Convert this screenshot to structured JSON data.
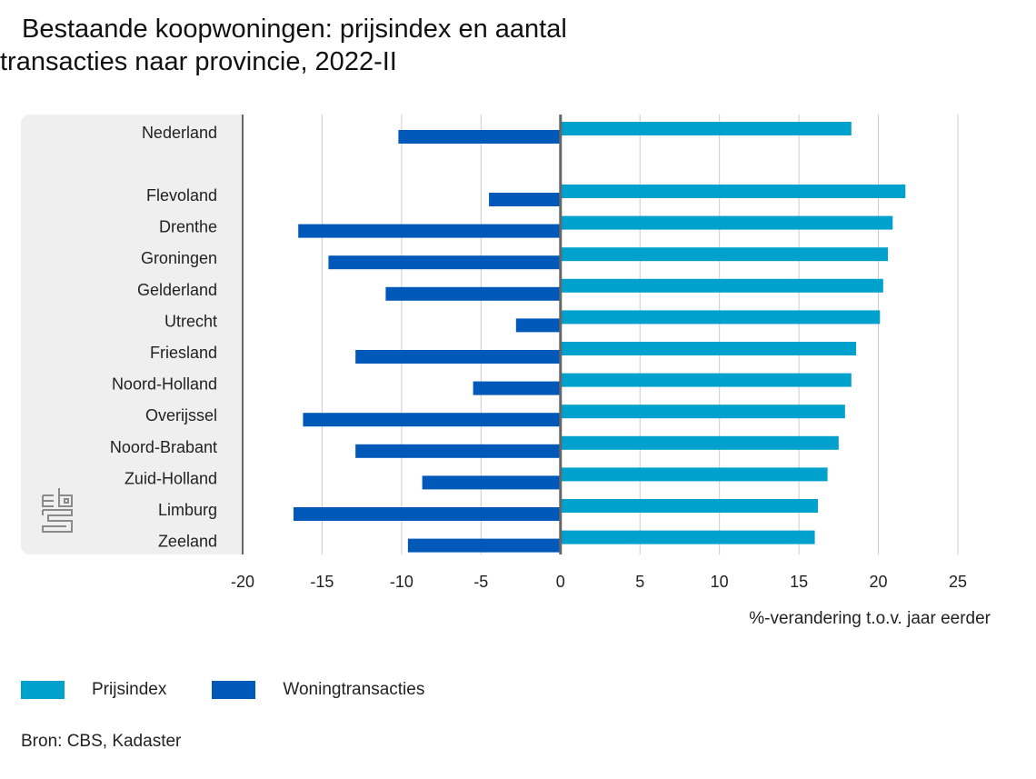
{
  "title": "Bestaande koopwoningen: prijsindex en aantal transacties naar provincie, 2022-II",
  "source": "Bron: CBS, Kadaster",
  "logo": "cbs-logo-icon",
  "colors": {
    "prijsindex": "#00a1cd",
    "woningtransacties": "#0058b8",
    "grid": "#cccccc",
    "axis": "#666666"
  },
  "chart_data": {
    "type": "bar",
    "orientation": "horizontal",
    "title": "Bestaande koopwoningen: prijsindex en aantal transacties naar provincie, 2022-II",
    "xlabel": "%-verandering t.o.v. jaar eerder",
    "ylabel": "",
    "xlim": [
      -20,
      25
    ],
    "xticks": [
      "-20",
      "-15",
      "-10",
      "-5",
      "0",
      "5",
      "10",
      "15",
      "20",
      "25"
    ],
    "grid": true,
    "legend_position": "bottom-left",
    "categories": [
      "Nederland",
      "Flevoland",
      "Drenthe",
      "Groningen",
      "Gelderland",
      "Utrecht",
      "Friesland",
      "Noord-Holland",
      "Overijssel",
      "Noord-Brabant",
      "Zuid-Holland",
      "Limburg",
      "Zeeland"
    ],
    "series": [
      {
        "name": "Prijsindex",
        "values": [
          18.3,
          21.7,
          20.9,
          20.6,
          20.3,
          20.1,
          18.6,
          18.3,
          17.9,
          17.5,
          16.8,
          16.2,
          16.0
        ]
      },
      {
        "name": "Woningtransacties",
        "values": [
          -10.2,
          -4.5,
          -16.5,
          -14.6,
          -11.0,
          -2.8,
          -12.9,
          -5.5,
          -16.2,
          -12.9,
          -8.7,
          -16.8,
          -9.6
        ]
      }
    ]
  }
}
